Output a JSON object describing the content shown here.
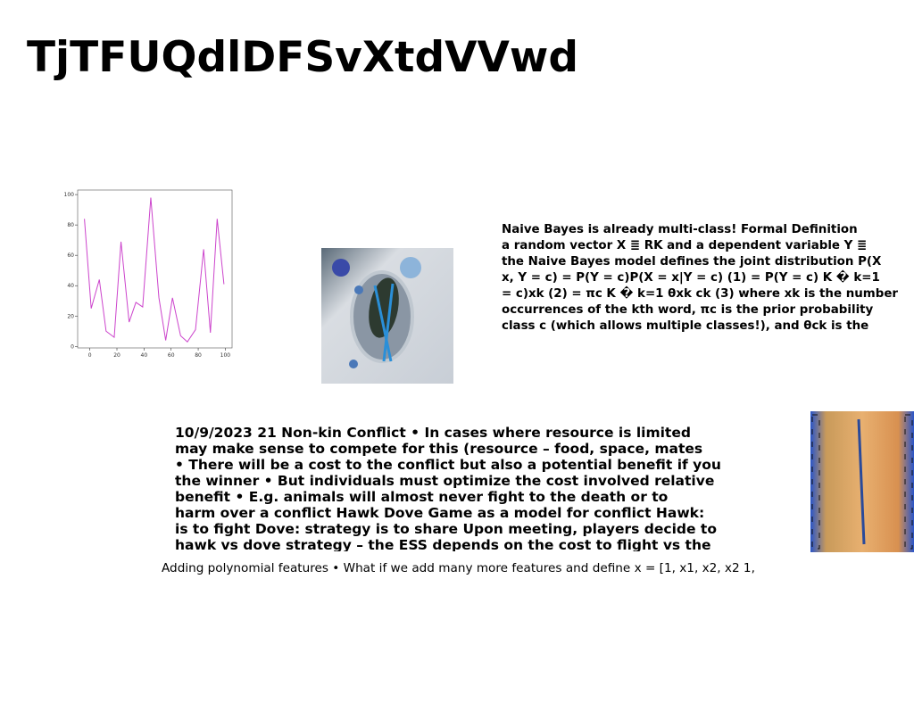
{
  "title": "TjTFUQdlDFSvXtdVVwd",
  "plot": {
    "type": "line",
    "color": "#cc44cc",
    "x": [
      -4,
      1,
      7,
      12,
      18,
      23,
      29,
      34,
      39,
      45,
      51,
      56,
      61,
      67,
      72,
      78,
      84,
      89,
      94,
      99
    ],
    "values": [
      84,
      25,
      44,
      10,
      6,
      69,
      16,
      29,
      26,
      98,
      32,
      4,
      32,
      7,
      3,
      11,
      64,
      9,
      84,
      41
    ],
    "xlim": [
      -9,
      105
    ],
    "ylim": [
      -1,
      103
    ],
    "xticks": [
      0,
      20,
      40,
      60,
      80,
      100
    ],
    "yticks": [
      0,
      20,
      40,
      60,
      80,
      100
    ]
  },
  "right_text": [
    "Naive Bayes is already multi-class! Formal Definition",
    "a random vector X ≣ RK and a dependent variable Y ≣",
    "the Naive Bayes model defines the joint distribution P(X",
    "x, Y = c) = P(Y = c)P(X = x|Y = c) (1) = P(Y = c) K � k=1",
    "= c)xk (2) = πc K � k=1 θxk ck (3) where xk is the number",
    "occurrences of the kth word, πc is the prior probability",
    "class c (which allows multiple classes!), and θck is the"
  ],
  "middle_text": [
    "10/9/2023 21 Non-kin Conflict • In cases where resource is limited",
    "may make sense to compete for this (resource – food, space, mates",
    "• There will be a cost to the conflict but also a potential benefit if you",
    "the winner • But individuals must optimize the cost involved relative",
    "benefit • E.g. animals will almost never fight to the death or to",
    "harm over a conflict Hawk Dove Game as a model for conflict Hawk:",
    "is to fight Dove: strategy is to share Upon meeting, players decide to",
    "hawk vs dove strategy – the ESS depends on the cost to flight vs the"
  ],
  "bottom_text": "Adding polynomial features • What if we add many more features and define x = [1, x1, x2, x2 1,"
}
